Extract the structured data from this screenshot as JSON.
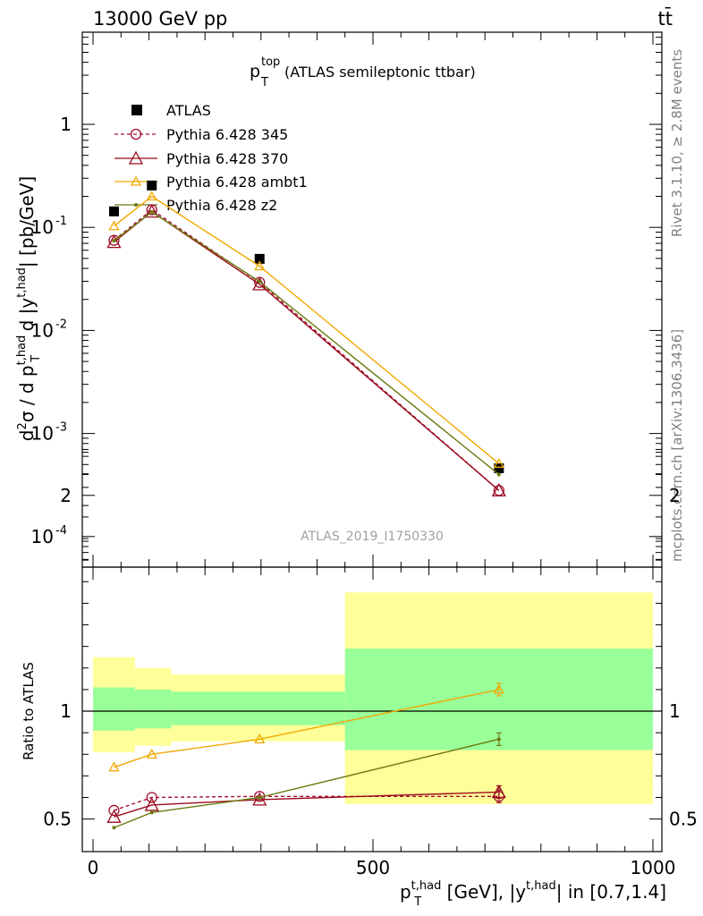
{
  "header": {
    "energy_label": "13000 GeV pp",
    "process_label": "tt̄",
    "plot_title": "p",
    "plot_title_sup": "top",
    "plot_title_sub": "T",
    "plot_title_rest": " (ATLAS semileptonic ttbar)"
  },
  "side_labels": {
    "rivet": "Rivet 3.1.10, ≥ 2.8M events",
    "mcplots": "mcplots.cern.ch [arXiv:1306.3436]"
  },
  "analysis_id": "ATLAS_2019_I1750330",
  "colors": {
    "atlas": "#000000",
    "p345": "#a0102e",
    "p370": "#9a0a1e",
    "ambt1": "#f0a800",
    "z2": "#6b7c10",
    "band_inner": "#99ff99",
    "band_outer": "#ffff99"
  },
  "chart_data": [
    {
      "type": "line",
      "panel": "main",
      "ylabel": "d²σ / d p_T^{t,had} d |y^{t,had}| [pb/GeV]",
      "yscale": "log",
      "ylim": [
        5e-05,
        10
      ],
      "xlim": [
        -20,
        1020
      ],
      "ytick_labels": [
        "1",
        "10^{-1}",
        "10^{-2}",
        "10^{-3}",
        "10^{-4}"
      ],
      "legend_position": "top-left",
      "x": [
        37.5,
        105,
        297.5,
        725
      ],
      "series": [
        {
          "name": "ATLAS",
          "marker": "filled-square",
          "values": [
            0.143,
            0.255,
            0.0495,
            0.00046
          ]
        },
        {
          "name": "Pythia 6.428 345",
          "marker": "open-circle",
          "line": "dashed",
          "values": [
            0.075,
            0.148,
            0.0293,
            0.00028
          ]
        },
        {
          "name": "Pythia 6.428 370",
          "marker": "open-triangle",
          "line": "solid",
          "values": [
            0.072,
            0.142,
            0.028,
            0.00028
          ]
        },
        {
          "name": "Pythia 6.428 ambt1",
          "marker": "open-triangle-small",
          "line": "solid",
          "values": [
            0.103,
            0.2,
            0.042,
            0.00051
          ]
        },
        {
          "name": "Pythia 6.428 z2",
          "marker": "dot",
          "line": "solid",
          "values": [
            0.074,
            0.141,
            0.0298,
            0.0004
          ]
        }
      ]
    },
    {
      "type": "line",
      "panel": "ratio",
      "ylabel": "Ratio to ATLAS",
      "xlabel": "p_T^{t,had} [GeV], |y^{t,had}| in [0.7,1.4]",
      "ylim": [
        0.4,
        2.4
      ],
      "xlim": [
        -20,
        1020
      ],
      "xtick_labels": [
        "0",
        "500",
        "1000"
      ],
      "ytick_labels": [
        "0.5",
        "1",
        "2"
      ],
      "bands": [
        {
          "x0": 0,
          "x1": 75,
          "inner": [
            0.91,
            1.11
          ],
          "outer": [
            0.81,
            1.25
          ]
        },
        {
          "x0": 75,
          "x1": 140,
          "inner": [
            0.92,
            1.1
          ],
          "outer": [
            0.84,
            1.2
          ]
        },
        {
          "x0": 140,
          "x1": 450,
          "inner": [
            0.935,
            1.09
          ],
          "outer": [
            0.86,
            1.17
          ]
        },
        {
          "x0": 450,
          "x1": 1000,
          "inner": [
            0.82,
            1.29
          ],
          "outer": [
            0.57,
            1.55
          ]
        }
      ],
      "x": [
        37.5,
        105,
        297.5,
        725
      ],
      "series": [
        {
          "name": "Pythia 6.428 345",
          "values": [
            0.54,
            0.6,
            0.605,
            0.605
          ]
        },
        {
          "name": "Pythia 6.428 370",
          "values": [
            0.51,
            0.565,
            0.59,
            0.625
          ]
        },
        {
          "name": "Pythia 6.428 ambt1",
          "values": [
            0.74,
            0.8,
            0.87,
            1.1
          ]
        },
        {
          "name": "Pythia 6.428 z2",
          "values": [
            0.46,
            0.53,
            0.6,
            0.87
          ]
        }
      ]
    }
  ]
}
